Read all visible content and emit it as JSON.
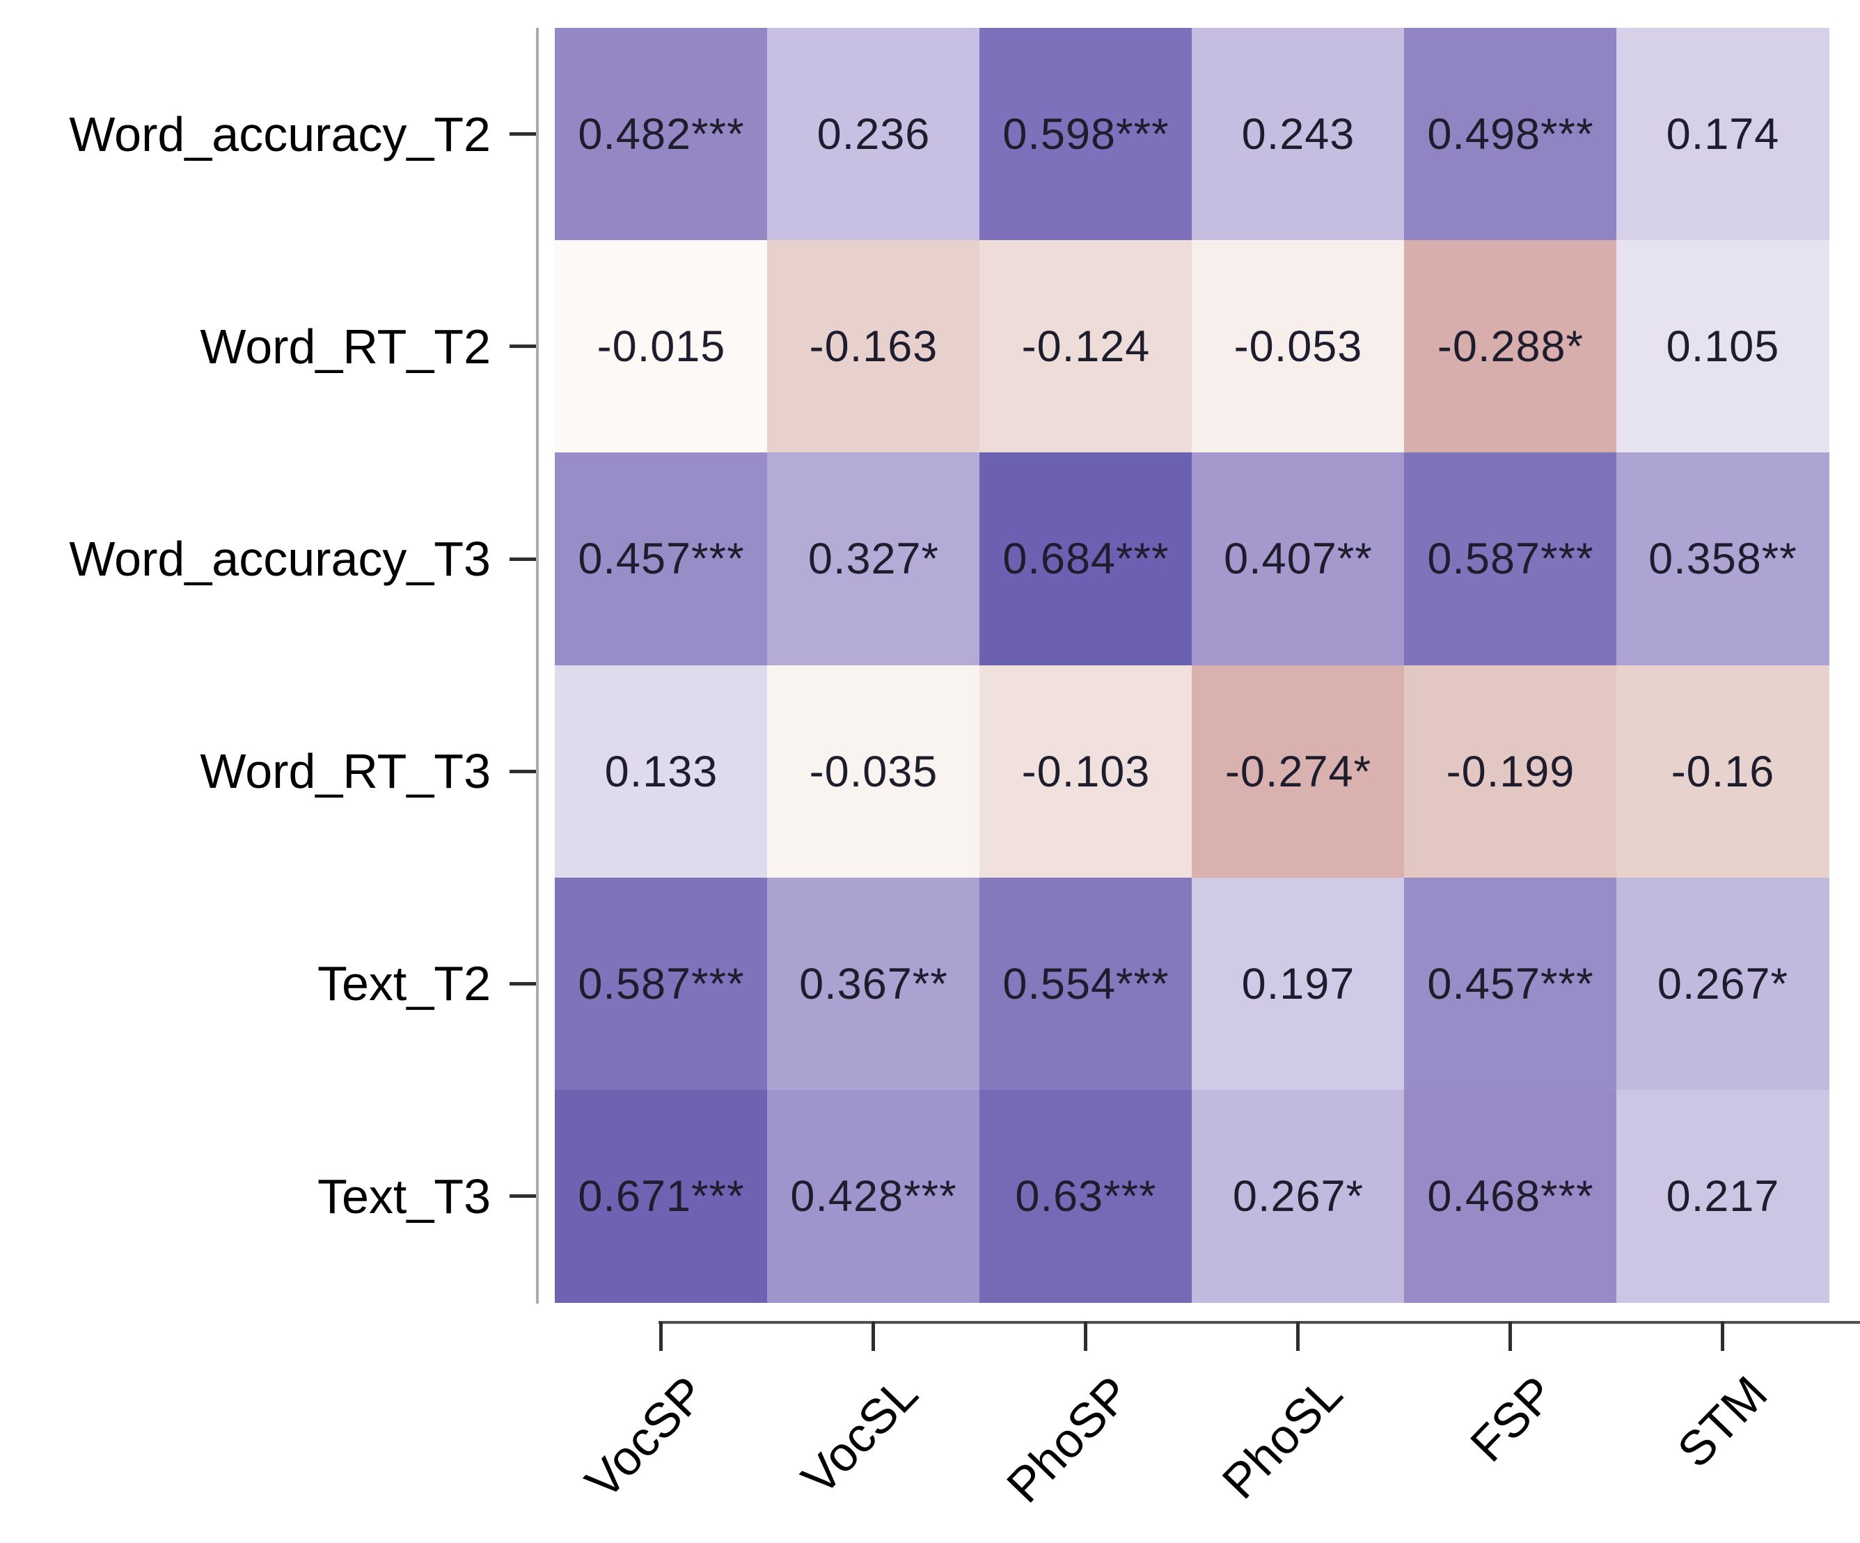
{
  "figure": {
    "title": "",
    "background_color": "#FFFFFF",
    "cell_text_color": "#1E1D2E",
    "axis_label_color": "#000000",
    "y_axis_line_color": "#ABABAB",
    "x_axis_line_color": "#4F4F4F",
    "tick_color": "#2E2E2E"
  },
  "chart_data": {
    "type": "heatmap",
    "title": "",
    "xlabel": "",
    "ylabel": "",
    "rows": [
      "Word_accuracy_T2",
      "Word_RT_T2",
      "Word_accuracy_T3",
      "Word_RT_T3",
      "Text_T2",
      "Text_T3"
    ],
    "columns": [
      "VocSP",
      "VocSL",
      "PhoSP",
      "PhoSL",
      "FSP",
      "STM"
    ],
    "values": [
      [
        0.482,
        0.236,
        0.598,
        0.243,
        0.498,
        0.174
      ],
      [
        -0.015,
        -0.163,
        -0.124,
        -0.053,
        -0.288,
        0.105
      ],
      [
        0.457,
        0.327,
        0.684,
        0.407,
        0.587,
        0.358
      ],
      [
        0.133,
        -0.035,
        -0.103,
        -0.274,
        -0.199,
        -0.16
      ],
      [
        0.587,
        0.367,
        0.554,
        0.197,
        0.457,
        0.267
      ],
      [
        0.671,
        0.428,
        0.63,
        0.267,
        0.468,
        0.217
      ]
    ],
    "cell_labels": [
      [
        "0.482***",
        "0.236",
        "0.598***",
        "0.243",
        "0.498***",
        "0.174"
      ],
      [
        "-0.015",
        "-0.163",
        "-0.124",
        "-0.053",
        "-0.288*",
        "0.105"
      ],
      [
        "0.457***",
        "0.327*",
        "0.684***",
        "0.407**",
        "0.587***",
        "0.358**"
      ],
      [
        "0.133",
        "-0.035",
        "-0.103",
        "-0.274*",
        "-0.199",
        "-0.16"
      ],
      [
        "0.587***",
        "0.367**",
        "0.554***",
        "0.197",
        "0.457***",
        "0.267*"
      ],
      [
        "0.671***",
        "0.428***",
        "0.63***",
        "0.267*",
        "0.468***",
        "0.217"
      ]
    ],
    "color_scale": {
      "type": "diverging",
      "positive_color": "#6B60B2",
      "zero_color": "#FFFDFB",
      "negative_color": "#D7AEAC",
      "anchors": [
        {
          "value": -0.288,
          "color": "#D7AEAC"
        },
        {
          "value": -0.163,
          "color": "#E8D1CD"
        },
        {
          "value": 0,
          "color": "#FFFDFB"
        },
        {
          "value": 0.236,
          "color": "#C7C0E2"
        },
        {
          "value": 0.482,
          "color": "#9487C4"
        },
        {
          "value": 0.684,
          "color": "#6B60B2"
        }
      ]
    },
    "legend": {
      "visible": false
    },
    "grid": false
  }
}
